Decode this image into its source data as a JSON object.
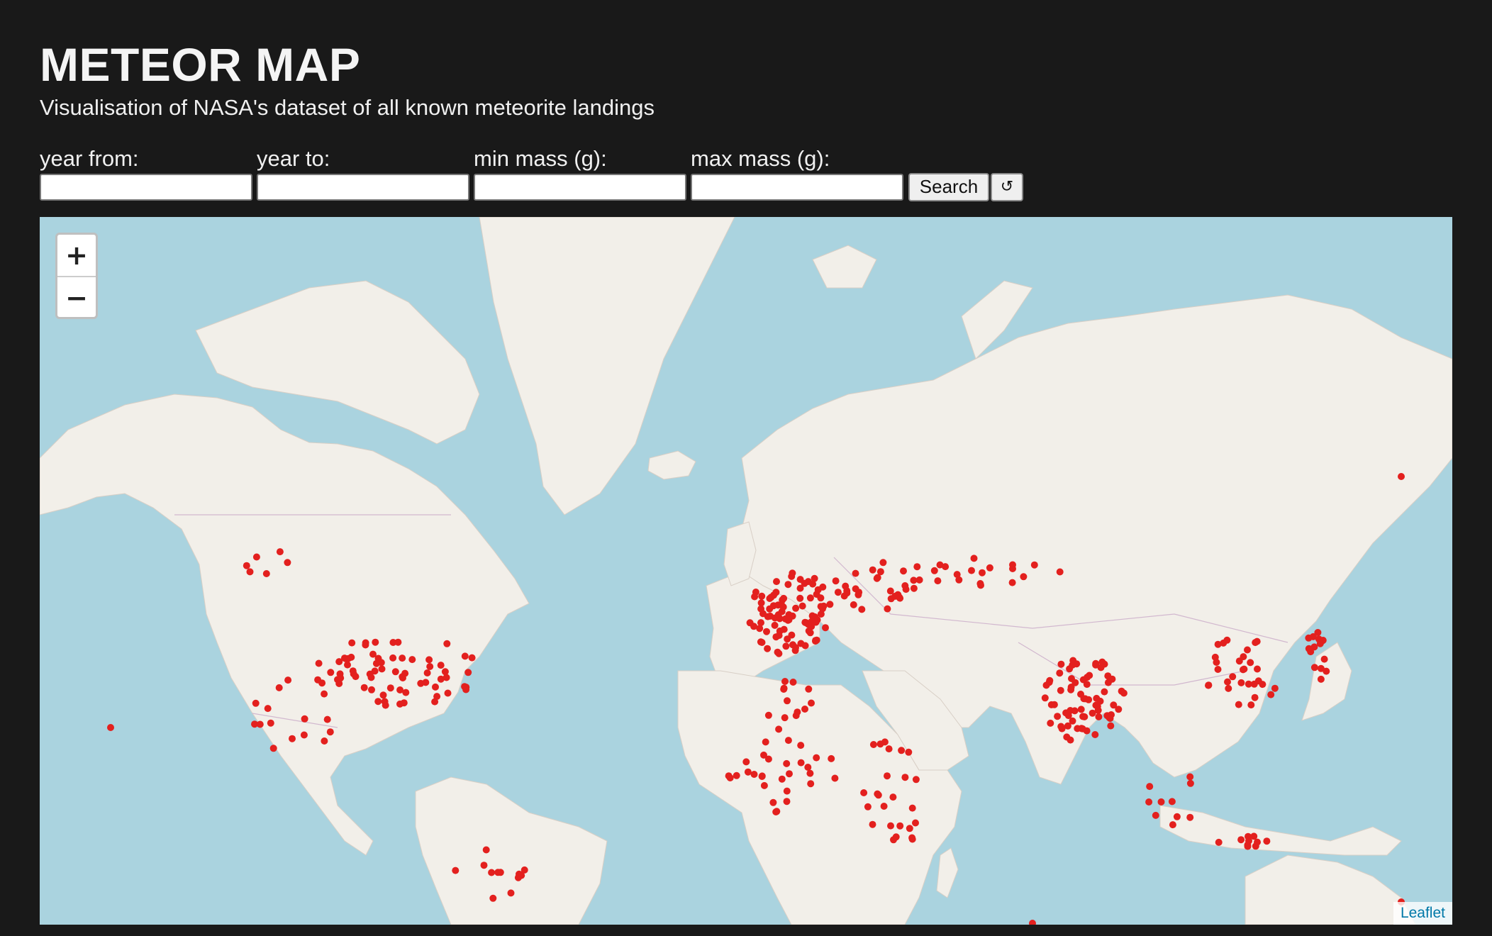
{
  "header": {
    "title": "METEOR MAP",
    "subtitle": "Visualisation of NASA's dataset of all known meteorite landings"
  },
  "filters": {
    "year_from_label": "year from:",
    "year_to_label": "year to:",
    "min_mass_label": "min mass (g):",
    "max_mass_label": "max mass (g):",
    "year_from_value": "",
    "year_to_value": "",
    "min_mass_value": "",
    "max_mass_value": "",
    "search_label": "Search",
    "reset_label": "↺"
  },
  "map": {
    "zoom_in": "+",
    "zoom_out": "−",
    "attribution": "Leaflet",
    "marker_color": "#e3201e",
    "land_color": "#f2efe9",
    "water_color": "#aad3df",
    "border_color": "#c9aac8"
  }
}
